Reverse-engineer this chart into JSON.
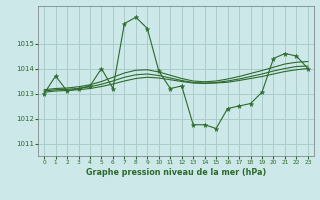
{
  "xlabel": "Graphe pression niveau de la mer (hPa)",
  "background_color": "#cce8e8",
  "grid_color": "#aacccc",
  "line_color": "#2d6a2d",
  "hours": [
    0,
    1,
    2,
    3,
    4,
    5,
    6,
    7,
    8,
    9,
    10,
    11,
    12,
    13,
    14,
    15,
    16,
    17,
    18,
    19,
    20,
    21,
    22,
    23
  ],
  "series_main": [
    1013.0,
    1013.7,
    1013.1,
    1013.2,
    1013.3,
    1014.0,
    1013.2,
    1015.8,
    1016.05,
    1015.6,
    1013.9,
    1013.2,
    1013.3,
    1011.75,
    1011.75,
    1011.6,
    1012.4,
    1012.5,
    1012.6,
    1013.05,
    1014.4,
    1014.6,
    1014.5,
    1014.0
  ],
  "series_smooth1": [
    1013.05,
    1013.1,
    1013.12,
    1013.15,
    1013.2,
    1013.28,
    1013.38,
    1013.5,
    1013.6,
    1013.65,
    1013.62,
    1013.55,
    1013.48,
    1013.42,
    1013.4,
    1013.42,
    1013.45,
    1013.52,
    1013.6,
    1013.68,
    1013.78,
    1013.88,
    1013.95,
    1014.0
  ],
  "series_smooth2": [
    1013.1,
    1013.15,
    1013.17,
    1013.2,
    1013.27,
    1013.37,
    1013.5,
    1013.65,
    1013.75,
    1013.78,
    1013.72,
    1013.62,
    1013.52,
    1013.44,
    1013.42,
    1013.44,
    1013.5,
    1013.58,
    1013.68,
    1013.78,
    1013.9,
    1014.0,
    1014.08,
    1014.1
  ],
  "series_smooth3": [
    1013.15,
    1013.2,
    1013.22,
    1013.27,
    1013.35,
    1013.48,
    1013.65,
    1013.82,
    1013.93,
    1013.95,
    1013.86,
    1013.73,
    1013.6,
    1013.5,
    1013.47,
    1013.5,
    1013.58,
    1013.68,
    1013.8,
    1013.92,
    1014.05,
    1014.18,
    1014.25,
    1014.28
  ],
  "ylim": [
    1010.5,
    1016.5
  ],
  "yticks": [
    1011,
    1012,
    1013,
    1014,
    1015
  ],
  "xticks": [
    0,
    1,
    2,
    3,
    4,
    5,
    6,
    7,
    8,
    9,
    10,
    11,
    12,
    13,
    14,
    15,
    16,
    17,
    18,
    19,
    20,
    21,
    22,
    23
  ]
}
